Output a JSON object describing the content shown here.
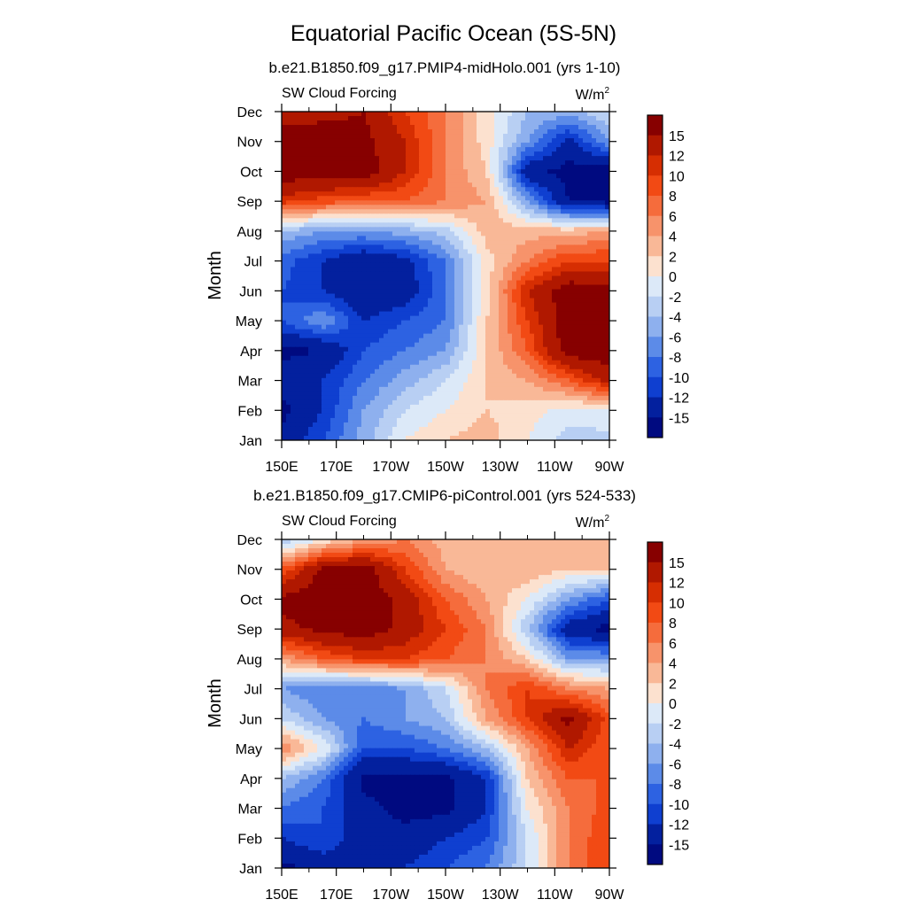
{
  "figure": {
    "title": "Equatorial Pacific Ocean (5S-5N)"
  },
  "chart_data": [
    {
      "type": "heatmap",
      "subtitle": "b.e21.B1850.f09_g17.PMIP4-midHolo.001 (yrs 1-10)",
      "left_label": "SW Cloud Forcing",
      "units_label": "W/m",
      "units_sup": "2",
      "ylabel": "Month",
      "xlabel": "",
      "xticks": [
        "150E",
        "170E",
        "170W",
        "150W",
        "130W",
        "110W",
        "90W"
      ],
      "yticks": [
        "Jan",
        "Feb",
        "Mar",
        "Apr",
        "May",
        "Jun",
        "Jul",
        "Aug",
        "Sep",
        "Oct",
        "Nov",
        "Dec"
      ],
      "xlim_deg_east": [
        150,
        270
      ],
      "colorbar": {
        "labels": [
          "15",
          "12",
          "10",
          "8",
          "6",
          "4",
          "2",
          "0",
          "-2",
          "-4",
          "-6",
          "-8",
          "-10",
          "-12",
          "-15"
        ],
        "colors": [
          "#870000",
          "#b01800",
          "#d62e02",
          "#f24a14",
          "#f56c3c",
          "#f7936b",
          "#f9b897",
          "#fce1cf",
          "#dce9f8",
          "#b8cff3",
          "#8eb0ee",
          "#5c8be8",
          "#2d62e2",
          "#0f3fd0",
          "#03209e",
          "#000a80"
        ]
      },
      "contour_levels": [
        -15,
        -12,
        -10,
        -8,
        -6,
        -4,
        -2,
        0,
        2,
        4,
        6,
        8,
        10,
        12,
        15
      ],
      "data_grid": {
        "lon": [
          150,
          165,
          180,
          195,
          210,
          225,
          240,
          255,
          270
        ],
        "month": [
          "Jan",
          "Feb",
          "Mar",
          "Apr",
          "May",
          "Jun",
          "Jul",
          "Aug",
          "Sep",
          "Oct",
          "Nov",
          "Dec"
        ],
        "z": [
          [
            -14,
            -10,
            -5,
            0,
            2,
            3,
            0,
            -3,
            -3
          ],
          [
            -16,
            -12,
            -6,
            -2,
            0,
            2,
            1,
            -1,
            0
          ],
          [
            -13,
            -12,
            -8,
            -5,
            -2,
            2,
            4,
            8,
            13
          ],
          [
            -16,
            -15,
            -10,
            -8,
            -6,
            2,
            8,
            17,
            17
          ],
          [
            -10,
            -6,
            -12,
            -10,
            -8,
            2,
            10,
            17,
            17
          ],
          [
            -10,
            -12,
            -15,
            -14,
            -8,
            1,
            12,
            17,
            16
          ],
          [
            -9,
            -12,
            -15,
            -13,
            -8,
            1,
            6,
            10,
            10
          ],
          [
            -4,
            -6,
            -6,
            -5,
            -3,
            3,
            3,
            3,
            4
          ],
          [
            11,
            9,
            8,
            8,
            6,
            4,
            -6,
            -15,
            -16
          ],
          [
            17,
            17,
            17,
            12,
            6,
            2,
            -14,
            -16,
            -17
          ],
          [
            17,
            17,
            16,
            12,
            6,
            1,
            -6,
            -13,
            -6
          ],
          [
            13,
            14,
            15,
            10,
            6,
            1,
            -4,
            -5,
            -2
          ]
        ]
      }
    },
    {
      "type": "heatmap",
      "subtitle": "b.e21.B1850.f09_g17.CMIP6-piControl.001 (yrs 524-533)",
      "left_label": "SW Cloud Forcing",
      "units_label": "W/m",
      "units_sup": "2",
      "ylabel": "Month",
      "xlabel": "",
      "xticks": [
        "150E",
        "170E",
        "170W",
        "150W",
        "130W",
        "110W",
        "90W"
      ],
      "yticks": [
        "Jan",
        "Feb",
        "Mar",
        "Apr",
        "May",
        "Jun",
        "Jul",
        "Aug",
        "Sep",
        "Oct",
        "Nov",
        "Dec"
      ],
      "xlim_deg_east": [
        150,
        270
      ],
      "colorbar": {
        "labels": [
          "15",
          "12",
          "10",
          "8",
          "6",
          "4",
          "2",
          "0",
          "-2",
          "-4",
          "-6",
          "-8",
          "-10",
          "-12",
          "-15"
        ],
        "colors": [
          "#870000",
          "#b01800",
          "#d62e02",
          "#f24a14",
          "#f56c3c",
          "#f7936b",
          "#f9b897",
          "#fce1cf",
          "#dce9f8",
          "#b8cff3",
          "#8eb0ee",
          "#5c8be8",
          "#2d62e2",
          "#0f3fd0",
          "#03209e",
          "#000a80"
        ]
      },
      "contour_levels": [
        -15,
        -12,
        -10,
        -8,
        -6,
        -4,
        -2,
        0,
        2,
        4,
        6,
        8,
        10,
        12,
        15
      ],
      "data_grid": {
        "lon": [
          150,
          165,
          180,
          195,
          210,
          225,
          240,
          255,
          270
        ],
        "month": [
          "Jan",
          "Feb",
          "Mar",
          "Apr",
          "May",
          "Jun",
          "Jul",
          "Aug",
          "Sep",
          "Oct",
          "Nov",
          "Dec"
        ],
        "z": [
          [
            -16,
            -14,
            -12,
            -12,
            -10,
            -8,
            -2,
            6,
            10
          ],
          [
            -12,
            -10,
            -14,
            -14,
            -12,
            -10,
            -2,
            6,
            10
          ],
          [
            -8,
            -10,
            -14,
            -16,
            -16,
            -12,
            0,
            6,
            9
          ],
          [
            -4,
            -8,
            -16,
            -16,
            -16,
            -12,
            2,
            8,
            8
          ],
          [
            6,
            0,
            -10,
            -10,
            -8,
            -4,
            4,
            12,
            8
          ],
          [
            -2,
            -6,
            -8,
            -6,
            -4,
            4,
            10,
            16,
            9
          ],
          [
            -6,
            -8,
            -8,
            -6,
            -2,
            6,
            10,
            6,
            4
          ],
          [
            4,
            8,
            10,
            10,
            8,
            6,
            2,
            -6,
            -6
          ],
          [
            14,
            16,
            17,
            14,
            10,
            6,
            -4,
            -14,
            -16
          ],
          [
            16,
            17,
            17,
            14,
            8,
            4,
            0,
            -6,
            -10
          ],
          [
            8,
            16,
            17,
            10,
            4,
            2,
            4,
            2,
            2
          ],
          [
            -4,
            0,
            4,
            6,
            3,
            2,
            2,
            2,
            2
          ]
        ]
      }
    }
  ]
}
